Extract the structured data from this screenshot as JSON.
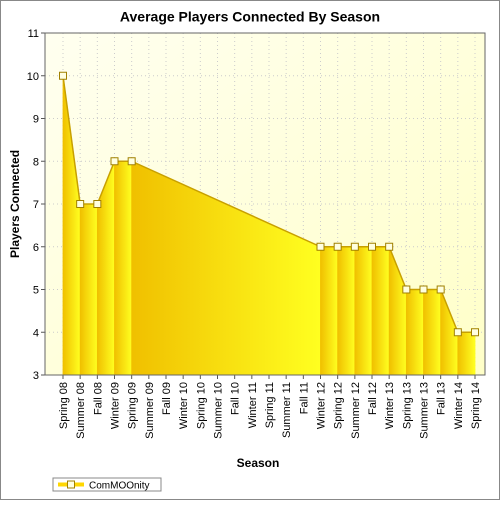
{
  "chart_data": {
    "type": "area",
    "title": "Average Players Connected By Season",
    "x_label": "Season",
    "y_label": "Players Connected",
    "categories": [
      "Spring 08",
      "Summer 08",
      "Fall 08",
      "Winter 09",
      "Spring 09",
      "Summer 09",
      "Fall 09",
      "Winter 10",
      "Spring 10",
      "Summer 10",
      "Fall 10",
      "Winter 11",
      "Spring 11",
      "Summer 11",
      "Fall 11",
      "Winter 12",
      "Spring 12",
      "Summer 12",
      "Fall 12",
      "Winter 13",
      "Spring 13",
      "Summer 13",
      "Fall 13",
      "Winter 14",
      "Spring 14"
    ],
    "series": [
      {
        "name": "ComMOOnity",
        "color": "#ffd700",
        "values": [
          10,
          7,
          7,
          8,
          8,
          null,
          null,
          null,
          null,
          null,
          null,
          null,
          null,
          null,
          null,
          6,
          6,
          6,
          6,
          6,
          5,
          5,
          5,
          4,
          4
        ]
      }
    ],
    "ylim": [
      3,
      11
    ],
    "yticks": [
      3,
      4,
      5,
      6,
      7,
      8,
      9,
      10,
      11
    ],
    "grid": true,
    "legend": "bottom-left"
  }
}
